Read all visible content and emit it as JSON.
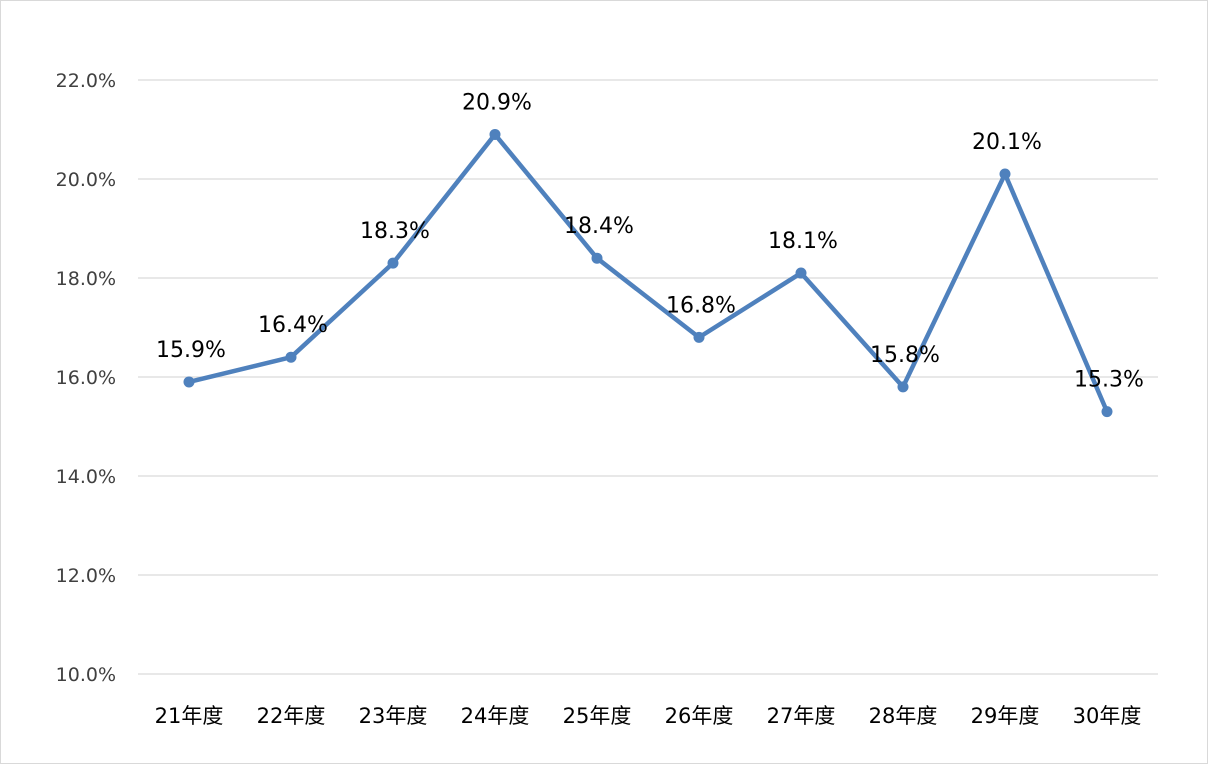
{
  "chart_data": {
    "type": "line",
    "categories": [
      "21年度",
      "22年度",
      "23年度",
      "24年度",
      "25年度",
      "26年度",
      "27年度",
      "28年度",
      "29年度",
      "30年度"
    ],
    "series": [
      {
        "values": [
          15.9,
          16.4,
          18.3,
          20.9,
          18.4,
          16.8,
          18.1,
          15.8,
          20.1,
          15.3
        ],
        "data_labels": [
          "15.9%",
          "16.4%",
          "18.3%",
          "20.9%",
          "18.4%",
          "16.8%",
          "18.1%",
          "15.8%",
          "20.1%",
          "15.3%"
        ],
        "color": "#4f81bd"
      }
    ],
    "y_ticks": [
      10.0,
      12.0,
      14.0,
      16.0,
      18.0,
      20.0,
      22.0
    ],
    "y_tick_labels": [
      "10.0%",
      "12.0%",
      "14.0%",
      "16.0%",
      "18.0%",
      "20.0%",
      "22.0%"
    ],
    "ylim": [
      10.0,
      22.0
    ],
    "grid": true,
    "legend": "none",
    "colors": {
      "line": "#4f81bd",
      "grid": "#d9d9d9",
      "y_tick_text": "#404040",
      "x_tick_text": "#000000"
    }
  }
}
